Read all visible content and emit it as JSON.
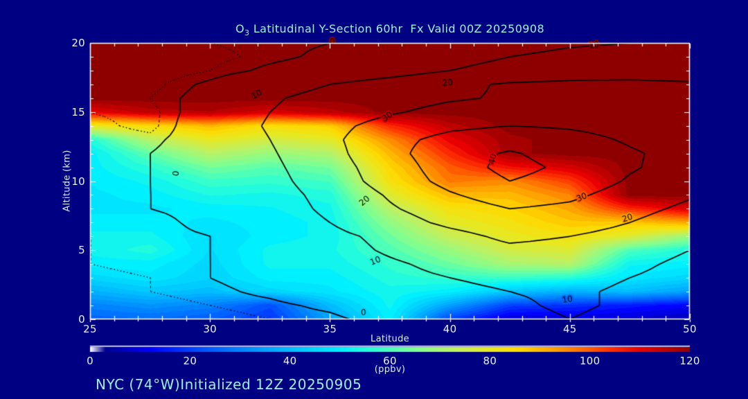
{
  "colors": {
    "background": "#000082",
    "accent_text": "#9df0de",
    "axis_text": "#d9ecf0",
    "tick_text": "#edf2fa",
    "frame": "#ffffff",
    "contour_line": "#000000",
    "fill_max_red": "#8e0000"
  },
  "title": {
    "prefix": "O",
    "sub": "3",
    "rest": " Latitudinal Y-Section 60hr  Fx Valid 00Z 20250908",
    "full": "O3 Latitudinal Y-Section 60hr  Fx Valid 00Z 20250908"
  },
  "footer": {
    "text": "NYC (74°W)Initialized 12Z 20250905"
  },
  "chart_data": {
    "type": "heatmap",
    "title": "O3 Latitudinal Y-Section 60hr  Fx Valid 00Z 20250908",
    "xlabel": "Latitude",
    "ylabel": "Altitude (km)",
    "x_range": [
      25,
      50
    ],
    "y_range": [
      0,
      20
    ],
    "x_ticks": [
      25,
      30,
      35,
      40,
      45,
      50
    ],
    "y_ticks": [
      0,
      5,
      10,
      15,
      20
    ],
    "x_minor_step": 1,
    "y_minor_step": 1,
    "lat": [
      25,
      27.5,
      30,
      32.5,
      35,
      37.5,
      40,
      42.5,
      45,
      47.5,
      50
    ],
    "alt": [
      20,
      19,
      18,
      17,
      16,
      15,
      14,
      13,
      12,
      11,
      10,
      9,
      8,
      7,
      6,
      5,
      4,
      3,
      2,
      1,
      0
    ],
    "fill_units": "ppbv",
    "fill_range": [
      0,
      120
    ],
    "fill_quant_step": 2.5,
    "fill_values": [
      [
        120,
        120,
        120,
        120,
        120,
        120,
        120,
        120,
        120,
        120,
        120
      ],
      [
        120,
        120,
        120,
        120,
        120,
        120,
        120,
        120,
        120,
        120,
        120
      ],
      [
        120,
        120,
        120,
        120,
        120,
        120,
        120,
        120,
        120,
        120,
        120
      ],
      [
        120,
        120,
        120,
        120,
        120,
        120,
        120,
        120,
        120,
        120,
        120
      ],
      [
        120,
        120,
        120,
        120,
        120,
        120,
        120,
        120,
        120,
        120,
        120
      ],
      [
        110,
        115,
        116,
        112,
        115,
        120,
        120,
        120,
        120,
        120,
        120
      ],
      [
        80,
        85,
        90,
        84,
        87,
        105,
        115,
        120,
        120,
        120,
        120
      ],
      [
        55,
        72,
        80,
        76,
        79,
        95,
        110,
        118,
        120,
        120,
        120
      ],
      [
        50,
        62,
        72,
        68,
        71,
        90,
        105,
        118,
        120,
        120,
        120
      ],
      [
        50,
        56,
        64,
        61,
        64,
        86,
        100,
        108,
        112,
        120,
        120
      ],
      [
        49,
        52,
        58,
        57,
        59,
        83,
        97,
        95,
        103,
        120,
        120
      ],
      [
        48,
        50,
        54,
        53,
        55,
        78,
        90,
        90,
        96,
        120,
        120
      ],
      [
        48,
        48,
        50,
        51,
        53,
        72,
        83,
        86,
        92,
        105,
        112
      ],
      [
        50,
        50,
        48,
        50,
        52,
        67,
        79,
        83,
        88,
        88,
        92
      ],
      [
        52,
        52,
        46,
        50,
        52,
        63,
        74,
        80,
        83,
        78,
        68
      ],
      [
        52,
        55,
        46,
        52,
        53,
        60,
        68,
        76,
        78,
        60,
        55
      ],
      [
        50,
        50,
        45,
        52,
        52,
        57,
        63,
        70,
        72,
        52,
        50
      ],
      [
        45,
        48,
        44,
        50,
        50,
        55,
        57,
        58,
        56,
        48,
        45
      ],
      [
        38,
        42,
        40,
        45,
        48,
        53,
        50,
        42,
        38,
        40,
        35
      ],
      [
        30,
        33,
        30,
        22,
        40,
        52,
        35,
        20,
        18,
        15,
        12
      ],
      [
        25,
        26,
        24,
        18,
        35,
        50,
        20,
        8,
        8,
        8,
        6
      ]
    ],
    "contour_values": [
      [
        -4,
        -3,
        -2,
        -1,
        0,
        2,
        5,
        7,
        9,
        10,
        11
      ],
      [
        -5,
        -4,
        -3,
        -1,
        1,
        4,
        7,
        10,
        12,
        13,
        14
      ],
      [
        -5,
        -4,
        -2,
        1,
        3,
        6,
        10,
        13,
        15,
        16,
        16
      ],
      [
        -4,
        -3,
        1,
        6,
        10,
        14,
        18,
        21,
        22,
        22,
        21
      ],
      [
        -3,
        -2,
        2,
        9,
        13,
        16,
        19,
        21,
        22,
        21,
        20
      ],
      [
        -2,
        -3,
        3,
        10,
        14,
        19,
        23,
        25,
        26,
        24,
        22
      ],
      [
        -1,
        -3,
        4,
        11,
        17,
        24,
        28,
        30,
        29,
        27,
        24
      ],
      [
        0,
        -1,
        3,
        10,
        18,
        27,
        33,
        36,
        33,
        29,
        26
      ],
      [
        0,
        0,
        3,
        9,
        17,
        27,
        36,
        41,
        36,
        31,
        27
      ],
      [
        0,
        0,
        2,
        8,
        16,
        25,
        35,
        43,
        38,
        31,
        26
      ],
      [
        -1,
        0,
        2,
        7,
        15,
        24,
        33,
        40,
        36,
        29,
        24
      ],
      [
        -1,
        0,
        1,
        6,
        13,
        21,
        29,
        35,
        32,
        26,
        21
      ],
      [
        -1,
        0,
        1,
        5,
        12,
        19,
        25,
        30,
        28,
        23,
        18
      ],
      [
        -1,
        -1,
        1,
        4,
        10,
        16,
        22,
        26,
        24,
        20,
        15
      ],
      [
        -2,
        -1,
        0,
        3,
        8,
        12,
        17,
        22,
        20,
        17,
        12
      ],
      [
        -2,
        -1,
        0,
        3,
        7,
        11,
        15,
        18,
        17,
        14,
        10
      ],
      [
        -2,
        -1,
        0,
        2,
        6,
        9,
        12,
        15,
        14,
        12,
        8
      ],
      [
        -3,
        -2,
        0,
        2,
        5,
        8,
        10,
        12,
        12,
        10,
        7
      ],
      [
        -3,
        -2,
        -1,
        1,
        4,
        6,
        8,
        10,
        11,
        9,
        6
      ],
      [
        -4,
        -3,
        -2,
        -1,
        1,
        4,
        7,
        9,
        11,
        9,
        5
      ],
      [
        -5,
        -4,
        -3,
        -2,
        -1,
        2,
        5,
        8,
        10,
        8,
        4
      ]
    ],
    "contour_levels_solid": [
      0,
      10,
      20,
      30,
      40
    ],
    "contour_levels_dotted": [
      -5,
      -2
    ],
    "contour_labels": [
      {
        "text": "0",
        "lat": 35.1,
        "alt": 20.05,
        "rot": 0
      },
      {
        "text": "10",
        "lat": 46.0,
        "alt": 19.8,
        "rot": -10
      },
      {
        "text": "20",
        "lat": 39.9,
        "alt": 17.1,
        "rot": -5
      },
      {
        "text": "10",
        "lat": 31.95,
        "alt": 16.25,
        "rot": -28
      },
      {
        "text": "30",
        "lat": 37.4,
        "alt": 14.65,
        "rot": -35
      },
      {
        "text": "0",
        "lat": 28.6,
        "alt": 10.55,
        "rot": -82
      },
      {
        "text": "40",
        "lat": 41.8,
        "alt": 11.6,
        "rot": -78
      },
      {
        "text": "30",
        "lat": 45.5,
        "alt": 8.8,
        "rot": -22
      },
      {
        "text": "20",
        "lat": 47.4,
        "alt": 7.3,
        "rot": -18
      },
      {
        "text": "20",
        "lat": 36.45,
        "alt": 8.55,
        "rot": -40
      },
      {
        "text": "10",
        "lat": 36.9,
        "alt": 4.2,
        "rot": -22
      },
      {
        "text": "0",
        "lat": 36.4,
        "alt": 0.45,
        "rot": 0
      },
      {
        "text": "10",
        "lat": 44.9,
        "alt": 1.4,
        "rot": -8
      }
    ],
    "colorbar": {
      "label": "(ppbv)",
      "ticks": [
        0,
        20,
        40,
        60,
        80,
        100,
        120
      ],
      "min": 0,
      "max": 120
    },
    "colormap_stops": [
      [
        0,
        "#ffffff"
      ],
      [
        3,
        "#00008f"
      ],
      [
        12,
        "#0000ff"
      ],
      [
        22,
        "#0050ff"
      ],
      [
        32,
        "#0090ff"
      ],
      [
        42,
        "#00c8ff"
      ],
      [
        50,
        "#00f0ff"
      ],
      [
        57,
        "#30ffd0"
      ],
      [
        65,
        "#80ff90"
      ],
      [
        73,
        "#c0f060"
      ],
      [
        80,
        "#e8e820"
      ],
      [
        86,
        "#ffd800"
      ],
      [
        92,
        "#ffa800"
      ],
      [
        98,
        "#ff7000"
      ],
      [
        104,
        "#ff3000"
      ],
      [
        110,
        "#e80000"
      ],
      [
        116,
        "#b40000"
      ],
      [
        120,
        "#8e0000"
      ]
    ]
  }
}
